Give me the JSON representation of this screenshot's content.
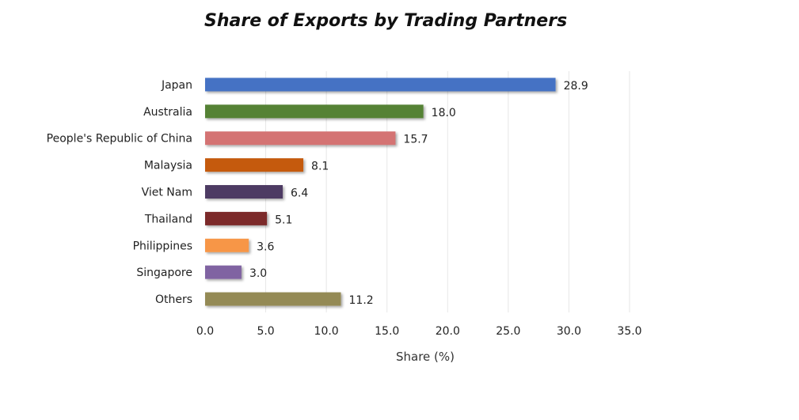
{
  "chart_data": {
    "type": "bar",
    "orientation": "horizontal",
    "title": "Share of Exports by Trading Partners",
    "xlabel": "Share (%)",
    "ylabel": "",
    "categories": [
      "Japan",
      "Australia",
      "People's Republic of China",
      "Malaysia",
      "Viet Nam",
      "Thailand",
      "Philippines",
      "Singapore",
      "Others"
    ],
    "values": [
      28.9,
      18.0,
      15.7,
      8.1,
      6.4,
      5.1,
      3.6,
      3.0,
      11.2
    ],
    "value_labels": [
      "28.9",
      "18.0",
      "15.7",
      "8.1",
      "6.4",
      "5.1",
      "3.6",
      "3.0",
      "11.2"
    ],
    "colors": [
      "#4472c4",
      "#548235",
      "#d47373",
      "#c55a11",
      "#4e3a64",
      "#7b2c2c",
      "#f79646",
      "#8064a2",
      "#948a54"
    ],
    "xlim": [
      0,
      35
    ],
    "x_ticks": [
      0,
      5,
      10,
      15,
      20,
      25,
      30,
      35
    ],
    "x_tick_labels": [
      "0.0",
      "5.0",
      "10.0",
      "15.0",
      "20.0",
      "25.0",
      "30.0",
      "35.0"
    ],
    "grid": true,
    "legend": "none"
  }
}
